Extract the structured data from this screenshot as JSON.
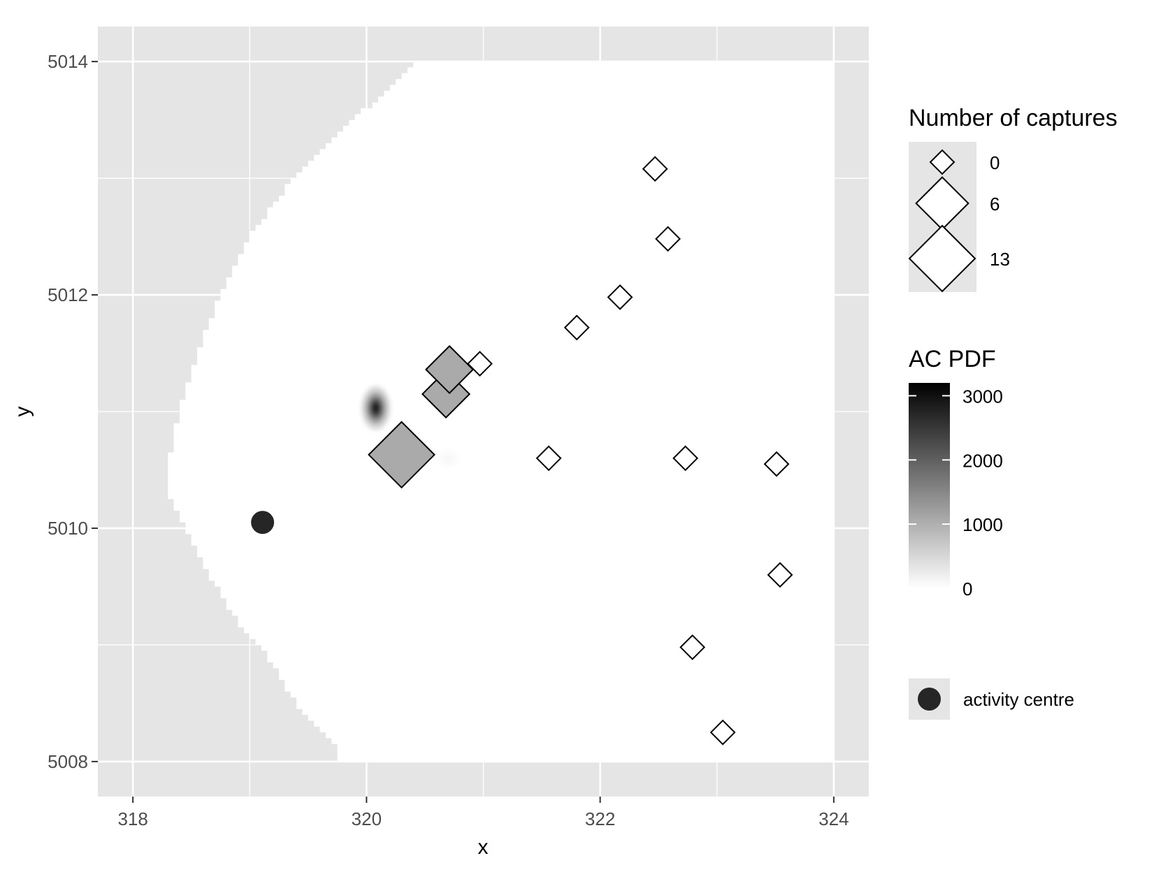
{
  "chart_data": {
    "type": "scatter",
    "xlabel": "x",
    "ylabel": "y",
    "xlim": [
      317.7,
      324.3
    ],
    "ylim": [
      5007.7,
      5014.3
    ],
    "x_ticks": [
      318,
      320,
      322,
      324
    ],
    "y_ticks": [
      5008,
      5010,
      5012,
      5014
    ],
    "x_tick_labels": [
      "318",
      "320",
      "322",
      "324"
    ],
    "y_tick_labels": [
      "5008",
      "5010",
      "5012",
      "5014"
    ],
    "grid": true,
    "legend_position": "right",
    "colors": {
      "panel_background": "#e5e5e5",
      "grid": "#ffffff",
      "habitat_mask": "#ffffff",
      "trap_outline": "#000000",
      "captured_trap_fill": "#aaaaaa",
      "uncaptured_trap_fill": "#ffffff",
      "activity_centre": "#262626"
    },
    "habitat_mask": {
      "description_free": true,
      "left_boundary": [
        [
          320.45,
          5014.0
        ],
        [
          320.0,
          5013.6
        ],
        [
          319.6,
          5013.2
        ],
        [
          319.3,
          5012.9
        ],
        [
          319.0,
          5012.5
        ],
        [
          318.75,
          5012.0
        ],
        [
          318.55,
          5011.5
        ],
        [
          318.4,
          5011.0
        ],
        [
          318.3,
          5010.5
        ],
        [
          318.3,
          5010.3
        ],
        [
          318.45,
          5010.0
        ],
        [
          318.65,
          5009.6
        ],
        [
          318.9,
          5009.2
        ],
        [
          319.15,
          5008.9
        ],
        [
          319.4,
          5008.5
        ],
        [
          319.75,
          5008.1
        ]
      ],
      "right_edge": 324.0,
      "top_edge": 5014.0,
      "bottom_edge": 5008.0
    },
    "ac_pdf_peaks": [
      {
        "x": 320.08,
        "y": 5011.03,
        "value": 3200,
        "sx": 0.08,
        "sy": 0.12
      },
      {
        "x": 320.7,
        "y": 5010.6,
        "value": 120,
        "sx": 0.07,
        "sy": 0.06
      }
    ],
    "traps": [
      {
        "x": 320.3,
        "y": 5010.63,
        "captures": 13
      },
      {
        "x": 320.68,
        "y": 5011.15,
        "captures": 4
      },
      {
        "x": 320.71,
        "y": 5011.36,
        "captures": 4
      },
      {
        "x": 320.97,
        "y": 5011.41,
        "captures": 0
      },
      {
        "x": 321.56,
        "y": 5010.6,
        "captures": 0
      },
      {
        "x": 321.8,
        "y": 5011.72,
        "captures": 0
      },
      {
        "x": 322.17,
        "y": 5011.98,
        "captures": 0
      },
      {
        "x": 322.47,
        "y": 5013.08,
        "captures": 0
      },
      {
        "x": 322.58,
        "y": 5012.48,
        "captures": 0
      },
      {
        "x": 322.73,
        "y": 5010.6,
        "captures": 0
      },
      {
        "x": 322.79,
        "y": 5008.98,
        "captures": 0
      },
      {
        "x": 323.05,
        "y": 5008.25,
        "captures": 0
      },
      {
        "x": 323.51,
        "y": 5010.55,
        "captures": 0
      },
      {
        "x": 323.54,
        "y": 5009.6,
        "captures": 0
      }
    ],
    "activity_centre": {
      "x": 319.11,
      "y": 5010.05
    },
    "legends": {
      "captures": {
        "title": "Number of captures",
        "entries": [
          {
            "label": "0",
            "captures": 0
          },
          {
            "label": "6",
            "captures": 6
          },
          {
            "label": "13",
            "captures": 13
          }
        ]
      },
      "pdf": {
        "title": "AC PDF",
        "min": 0,
        "max": 3200,
        "tick_values": [
          0,
          1000,
          2000,
          3000
        ],
        "tick_labels": [
          "0",
          "1000",
          "2000",
          "3000"
        ]
      },
      "activity_centre": {
        "label": "activity centre"
      }
    }
  }
}
